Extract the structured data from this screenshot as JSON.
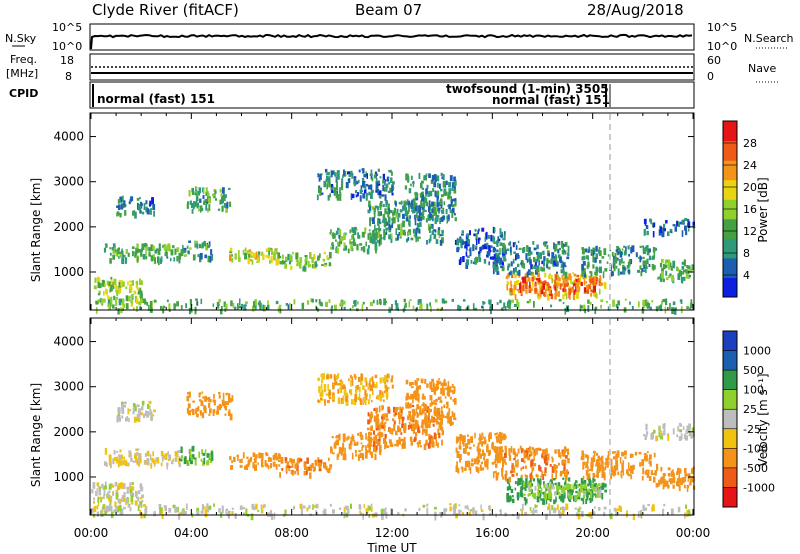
{
  "header": {
    "site": "Clyde River (fitACF)",
    "beam": "Beam 07",
    "date": "28/Aug/2018"
  },
  "params": {
    "nsky_label": "N.Sky",
    "nsky_ticks": [
      "10^5",
      "10^0"
    ],
    "nsearch_label": "N.Search",
    "nsearch_ticks": [
      "10^5",
      "10^0"
    ],
    "freq_label": [
      "Freq.",
      "[MHz]"
    ],
    "freq_ticks": [
      "18",
      "8"
    ],
    "nave_label": "Nave",
    "nave_ticks": [
      "60",
      "0"
    ],
    "cpid_label": "CPID",
    "cpid_modes": [
      {
        "name": "normal (fast) 151",
        "start_hour": 0
      },
      {
        "name": "twofsound (1-min) 3505",
        "start_hour": 20.7
      },
      {
        "name": "normal (fast) 151",
        "start_hour": 20.85
      }
    ]
  },
  "colors": {
    "power": [
      "#0d1fe0",
      "#1c5fb0",
      "#2f9a7a",
      "#43a143",
      "#8fd02c",
      "#e8d410",
      "#f39319",
      "#ef5a16",
      "#e61414"
    ],
    "velocity": [
      "#e61414",
      "#ef5a16",
      "#f39319",
      "#f1c20f",
      "#bdbdbd",
      "#8fd02c",
      "#2f9a4a",
      "#1c5fb0",
      "#1c3fc0"
    ],
    "ground_scatter": "#b0b0b0"
  },
  "chart_data": [
    {
      "type": "heatmap",
      "panel": "power",
      "ylabel": "Slant Range [km]",
      "ylim": [
        180,
        4500
      ],
      "yticks": [
        "1000",
        "2000",
        "3000",
        "4000"
      ],
      "colorbar_label": "Power [dB]",
      "colorbar_ticks": [
        "4",
        "8",
        "12",
        "16",
        "20",
        "24",
        "28"
      ],
      "colorbar_range": [
        0,
        32
      ],
      "regions": [
        {
          "t": [
            0.5,
            3.5
          ],
          "r": [
            1300,
            1650
          ],
          "v": 12
        },
        {
          "t": [
            3.5,
            4.8
          ],
          "r": [
            1350,
            1700
          ],
          "v": 10
        },
        {
          "t": [
            5.5,
            7.5
          ],
          "r": [
            1250,
            1550
          ],
          "v": 18
        },
        {
          "t": [
            7.5,
            9.5
          ],
          "r": [
            1100,
            1450
          ],
          "v": 14
        },
        {
          "t": [
            9.5,
            11.5
          ],
          "r": [
            1500,
            2000
          ],
          "v": 12
        },
        {
          "t": [
            11.0,
            14.0
          ],
          "r": [
            1700,
            2600
          ],
          "v": 10
        },
        {
          "t": [
            12.5,
            14.5
          ],
          "r": [
            2200,
            3200
          ],
          "v": 9
        },
        {
          "t": [
            9.0,
            12.0
          ],
          "r": [
            2700,
            3300
          ],
          "v": 8
        },
        {
          "t": [
            1.0,
            2.5
          ],
          "r": [
            2300,
            2700
          ],
          "v": 8
        },
        {
          "t": [
            3.8,
            5.6
          ],
          "r": [
            2400,
            2900
          ],
          "v": 11
        },
        {
          "t": [
            14.5,
            16.5
          ],
          "r": [
            1200,
            2000
          ],
          "v": 6
        },
        {
          "t": [
            16.5,
            20.5
          ],
          "r": [
            500,
            1000
          ],
          "v": 22
        },
        {
          "t": [
            17.0,
            20.3
          ],
          "r": [
            600,
            900
          ],
          "v": 27
        },
        {
          "t": [
            16.0,
            19.0
          ],
          "r": [
            1000,
            1700
          ],
          "v": 8
        },
        {
          "t": [
            19.5,
            22.5
          ],
          "r": [
            1000,
            1600
          ],
          "v": 9
        },
        {
          "t": [
            22.5,
            24.0
          ],
          "r": [
            800,
            1300
          ],
          "v": 12
        },
        {
          "t": [
            22.0,
            24.0
          ],
          "r": [
            1900,
            2200
          ],
          "v": 6
        },
        {
          "t": [
            0.0,
            2.0
          ],
          "r": [
            300,
            900
          ],
          "v": 16
        },
        {
          "t": [
            0.0,
            24.0
          ],
          "r": [
            180,
            420
          ],
          "v": 12
        }
      ]
    },
    {
      "type": "heatmap",
      "panel": "velocity",
      "ylabel": "Slant Range [km]",
      "xlabel": "Time UT",
      "ylim": [
        180,
        4500
      ],
      "yticks": [
        "1000",
        "2000",
        "3000",
        "4000"
      ],
      "xticks": [
        "00:00",
        "04:00",
        "08:00",
        "12:00",
        "16:00",
        "20:00",
        "00:00"
      ],
      "xlim": [
        0,
        24
      ],
      "colorbar_label": "Velocity [m s⁻¹]",
      "colorbar_ticks": [
        "1000",
        "500",
        "100",
        "25",
        "-25",
        "-100",
        "-500",
        "-1000"
      ],
      "regions": [
        {
          "t": [
            0.5,
            3.5
          ],
          "r": [
            1300,
            1650
          ],
          "v": -25
        },
        {
          "t": [
            3.5,
            4.8
          ],
          "r": [
            1350,
            1700
          ],
          "v": 100
        },
        {
          "t": [
            5.5,
            7.5
          ],
          "r": [
            1250,
            1550
          ],
          "v": -300
        },
        {
          "t": [
            7.5,
            9.5
          ],
          "r": [
            1100,
            1450
          ],
          "v": -400
        },
        {
          "t": [
            9.5,
            11.5
          ],
          "r": [
            1500,
            2000
          ],
          "v": -350
        },
        {
          "t": [
            11.0,
            14.0
          ],
          "r": [
            1700,
            2600
          ],
          "v": -400
        },
        {
          "t": [
            12.5,
            14.5
          ],
          "r": [
            2200,
            3200
          ],
          "v": -200
        },
        {
          "t": [
            9.0,
            12.0
          ],
          "r": [
            2700,
            3300
          ],
          "v": -100
        },
        {
          "t": [
            1.0,
            2.5
          ],
          "r": [
            2300,
            2700
          ],
          "v": 0
        },
        {
          "t": [
            3.8,
            5.6
          ],
          "r": [
            2400,
            2900
          ],
          "v": -200
        },
        {
          "t": [
            14.5,
            16.5
          ],
          "r": [
            1200,
            2000
          ],
          "v": -300
        },
        {
          "t": [
            16.5,
            20.5
          ],
          "r": [
            500,
            1000
          ],
          "v": 200
        },
        {
          "t": [
            17.0,
            20.3
          ],
          "r": [
            600,
            900
          ],
          "v": 50
        },
        {
          "t": [
            16.0,
            19.0
          ],
          "r": [
            1000,
            1700
          ],
          "v": -400
        },
        {
          "t": [
            19.5,
            22.5
          ],
          "r": [
            1000,
            1600
          ],
          "v": -350
        },
        {
          "t": [
            22.5,
            24.0
          ],
          "r": [
            800,
            1300
          ],
          "v": -300
        },
        {
          "t": [
            22.0,
            24.0
          ],
          "r": [
            1900,
            2200
          ],
          "v": 0
        },
        {
          "t": [
            0.0,
            2.0
          ],
          "r": [
            300,
            900
          ],
          "v": 0
        },
        {
          "t": [
            0.0,
            24.0
          ],
          "r": [
            180,
            420
          ],
          "v": 0
        }
      ]
    }
  ]
}
